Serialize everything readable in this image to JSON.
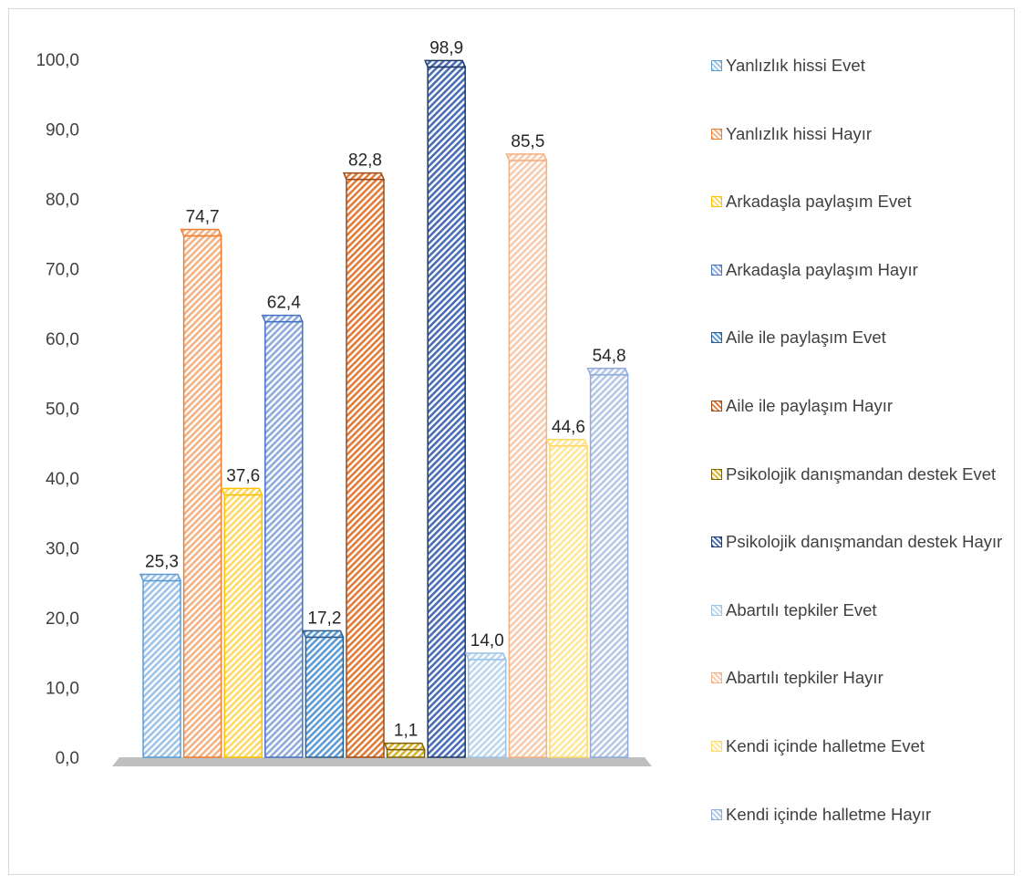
{
  "chart_data": {
    "type": "bar",
    "title": "",
    "xlabel": "",
    "ylabel": "",
    "ylim": [
      0,
      100
    ],
    "yticks": [
      "0,0",
      "10,0",
      "20,0",
      "30,0",
      "40,0",
      "50,0",
      "60,0",
      "70,0",
      "80,0",
      "90,0",
      "100,0"
    ],
    "grid": false,
    "legend_position": "right",
    "series": [
      {
        "name": "Yanlızlık hissi Evet",
        "value": 25.3,
        "label": "25,3",
        "color": "#9dc3e6",
        "stroke": "#5b9bd5"
      },
      {
        "name": "Yanlızlık hissi Hayır",
        "value": 74.7,
        "label": "74,7",
        "color": "#f4b183",
        "stroke": "#ed7d31"
      },
      {
        "name": "Arkadaşla paylaşım Evet",
        "value": 37.6,
        "label": "37,6",
        "color": "#ffd966",
        "stroke": "#ffc000"
      },
      {
        "name": "Arkadaşla paylaşım Hayır",
        "value": 62.4,
        "label": "62,4",
        "color": "#8faadc",
        "stroke": "#4472c4"
      },
      {
        "name": "Aile ile paylaşım Evet",
        "value": 17.2,
        "label": "17,2",
        "color": "#5b9bd5",
        "stroke": "#2e5c8a"
      },
      {
        "name": "Aile ile paylaşım Hayır",
        "value": 82.8,
        "label": "82,8",
        "color": "#e07b39",
        "stroke": "#9e4a16"
      },
      {
        "name": "Psikolojik danışmandan destek Evet",
        "value": 1.1,
        "label": "1,1",
        "color": "#d6b42c",
        "stroke": "#7f6000"
      },
      {
        "name": "Psikolojik danışmandan destek Hayır",
        "value": 98.9,
        "label": "98,9",
        "color": "#4a6db5",
        "stroke": "#1f3864"
      },
      {
        "name": "Abartılı tepkiler Evet",
        "value": 14.0,
        "label": "14,0",
        "color": "#bdd7ee",
        "stroke": "#9dc3e6"
      },
      {
        "name": "Abartılı tepkiler Hayır",
        "value": 85.5,
        "label": "85,5",
        "color": "#f8cbad",
        "stroke": "#f4b183"
      },
      {
        "name": "Kendi içinde halletme Evet",
        "value": 44.6,
        "label": "44,6",
        "color": "#ffe699",
        "stroke": "#ffd966"
      },
      {
        "name": "Kendi içinde halletme Hayır",
        "value": 54.8,
        "label": "54,8",
        "color": "#b4c7e7",
        "stroke": "#8faadc"
      }
    ]
  }
}
